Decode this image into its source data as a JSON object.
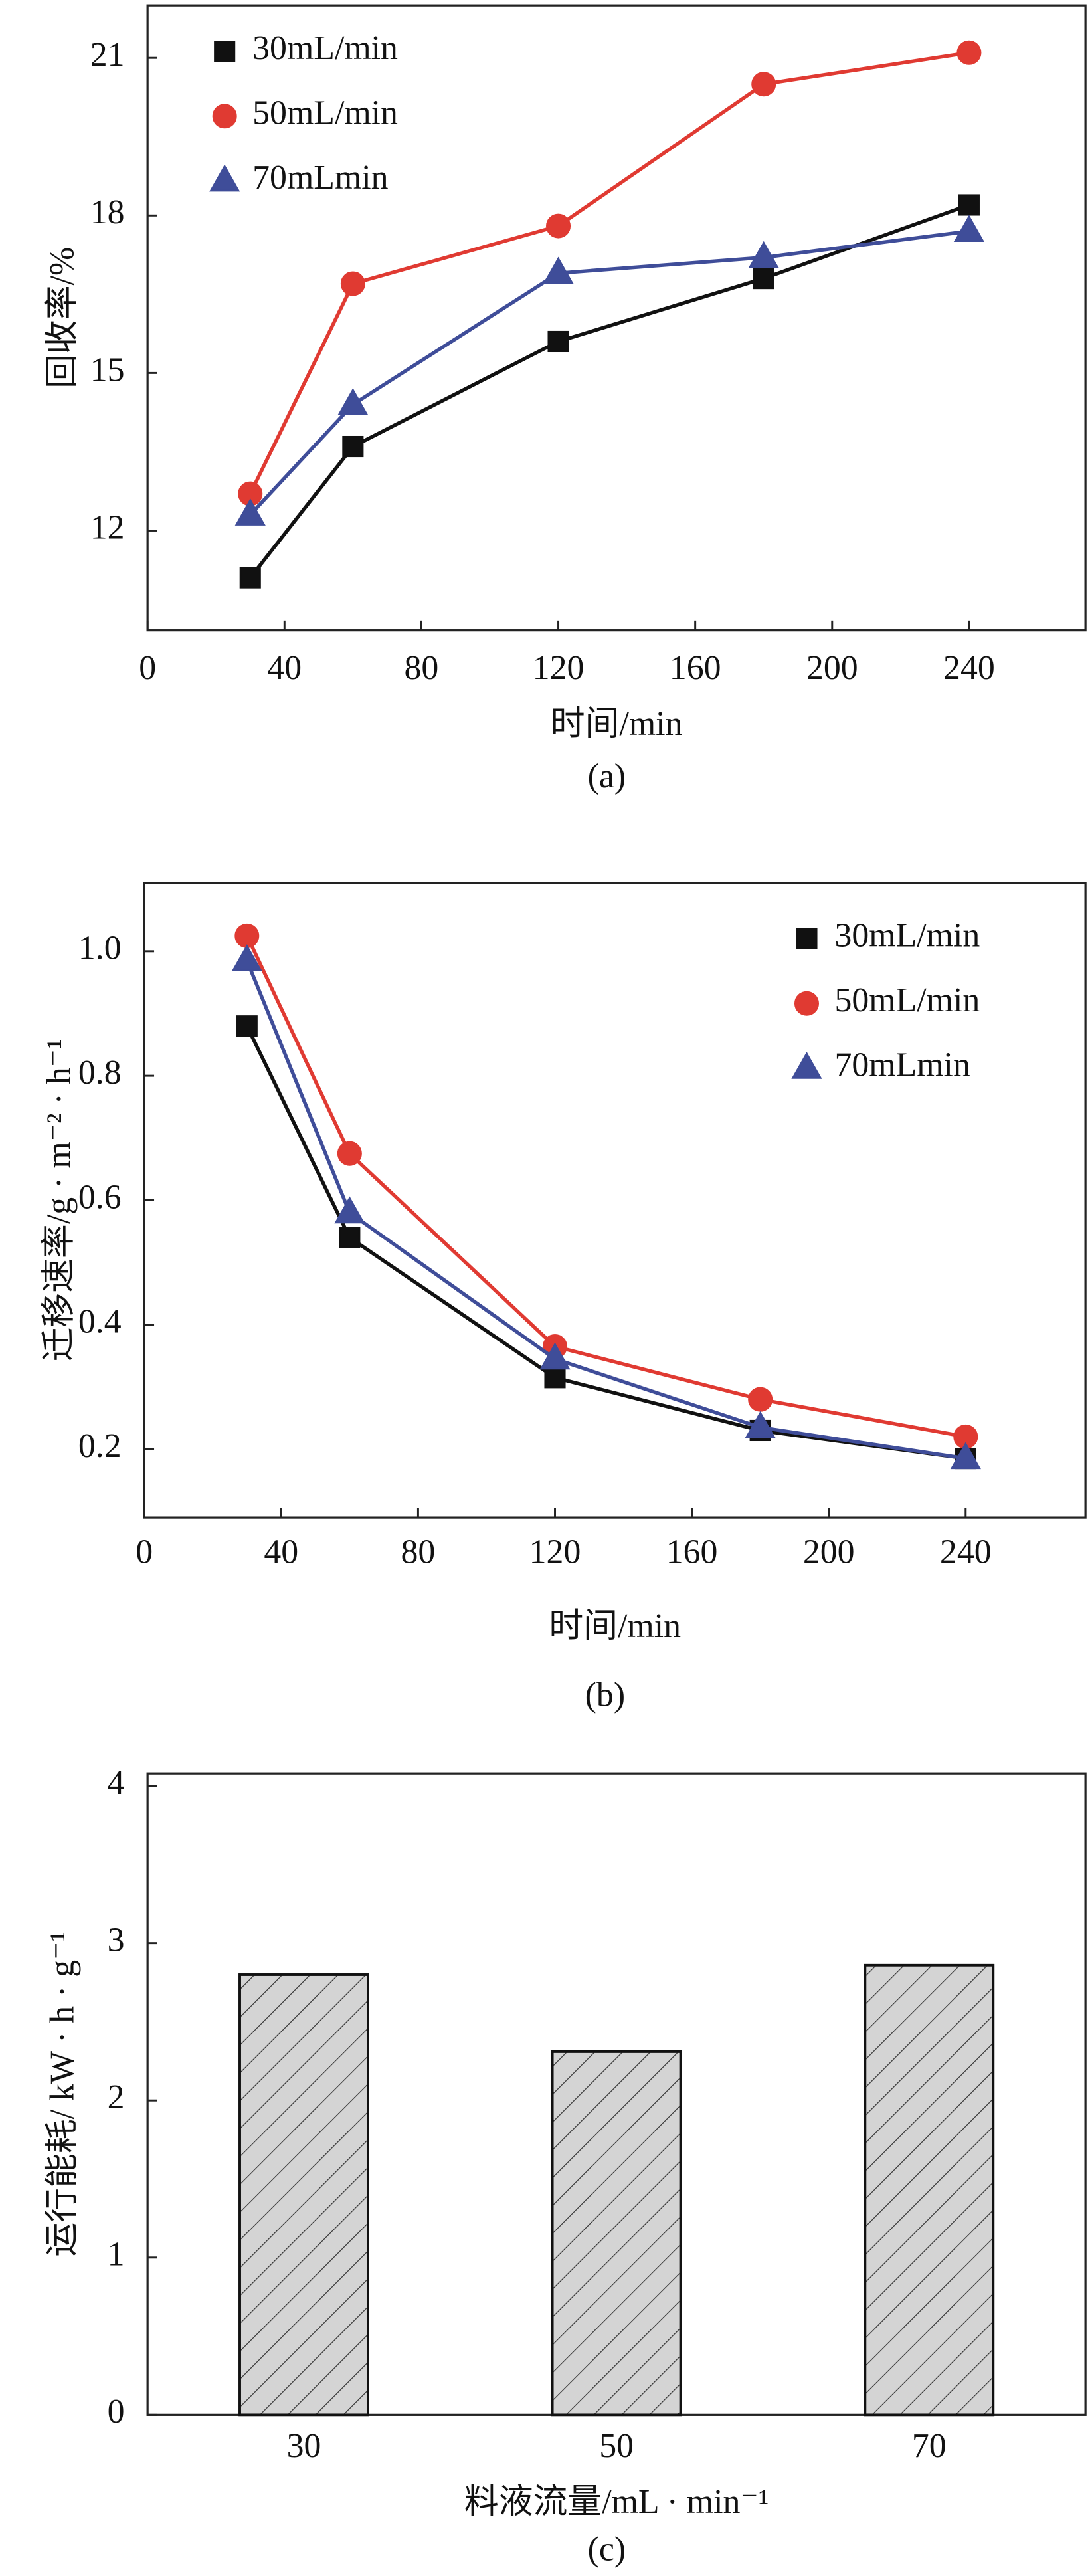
{
  "chart_data": [
    {
      "type": "line",
      "xlabel": "时间/min",
      "ylabel": "回收率/%",
      "caption": "(a)",
      "x": [
        30,
        60,
        120,
        180,
        240
      ],
      "xlim": [
        0,
        274
      ],
      "xticks": [
        0,
        40,
        80,
        120,
        160,
        200,
        240
      ],
      "ylim": [
        10.1,
        22
      ],
      "yticks": [
        12,
        15,
        18,
        21
      ],
      "legend": "upper left",
      "series": [
        {
          "name": "30mL/min",
          "color": "#111111",
          "marker": "square",
          "values": [
            11.1,
            13.6,
            15.6,
            16.8,
            18.2
          ]
        },
        {
          "name": "50mL/min",
          "color": "#e03a32",
          "marker": "circle",
          "values": [
            12.7,
            16.7,
            17.8,
            20.5,
            21.1
          ]
        },
        {
          "name": "70mLmin",
          "color": "#3f4d99",
          "marker": "triangle",
          "values": [
            12.3,
            14.4,
            16.9,
            17.2,
            17.7
          ]
        }
      ]
    },
    {
      "type": "line",
      "xlabel": "时间/min",
      "ylabel": "迁移速率/g · m⁻² · h⁻¹",
      "caption": "(b)",
      "x": [
        30,
        60,
        120,
        180,
        240
      ],
      "xlim": [
        0,
        275
      ],
      "xticks": [
        0,
        40,
        80,
        120,
        160,
        200,
        240
      ],
      "ylim": [
        0.09,
        1.11
      ],
      "yticks": [
        0.2,
        0.4,
        0.6,
        0.8,
        {
          "value": 1.0,
          "label": "1.0"
        }
      ],
      "legend": "upper right",
      "series": [
        {
          "name": "30mL/min",
          "color": "#111111",
          "marker": "square",
          "values": [
            0.88,
            0.54,
            0.315,
            0.23,
            0.185
          ]
        },
        {
          "name": "50mL/min",
          "color": "#e03a32",
          "marker": "circle",
          "values": [
            1.025,
            0.675,
            0.365,
            0.28,
            0.22
          ]
        },
        {
          "name": "70mLmin",
          "color": "#3f4d99",
          "marker": "triangle",
          "values": [
            0.985,
            0.58,
            0.345,
            0.235,
            0.185
          ]
        }
      ]
    },
    {
      "type": "bar",
      "xlabel": "料液流量/mL · min⁻¹",
      "ylabel": "运行能耗/ kW · h · g⁻¹",
      "caption": "(c)",
      "categories": [
        "30",
        "50",
        "70"
      ],
      "values": [
        2.8,
        2.31,
        2.86
      ],
      "color": "#d4d4d4",
      "hatch": true,
      "ylim": [
        0,
        4.08
      ],
      "yticks": [
        0,
        1,
        2,
        3,
        4
      ]
    }
  ]
}
